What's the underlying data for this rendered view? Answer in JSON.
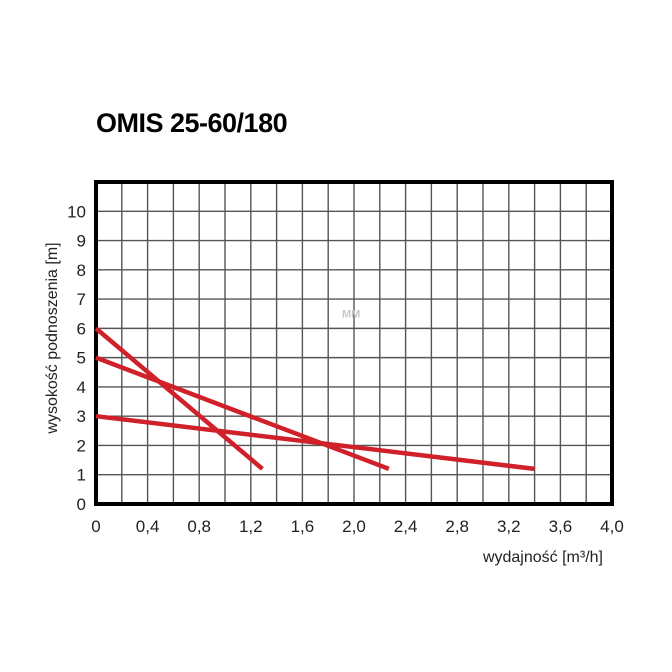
{
  "chart_data": {
    "type": "line",
    "title": "OMIS 25-60/180",
    "xlabel": "wydajność [m³/h]",
    "ylabel": "wysokość podnoszenia [m]",
    "xlim": [
      0,
      4.0
    ],
    "ylim": [
      0,
      11
    ],
    "x_ticks": [
      "0",
      "0,4",
      "0,8",
      "1,2",
      "1,6",
      "2,0",
      "2,4",
      "2,8",
      "3,2",
      "3,6",
      "4,0"
    ],
    "y_ticks": [
      "0",
      "1",
      "2",
      "3",
      "4",
      "5",
      "6",
      "7",
      "8",
      "9",
      "10"
    ],
    "grid": true,
    "watermark": "MM",
    "line_color": "#d0202a",
    "series": [
      {
        "x": [
          0,
          1.29
        ],
        "y": [
          6.0,
          1.2
        ]
      },
      {
        "x": [
          0,
          2.27
        ],
        "y": [
          5.0,
          1.2
        ]
      },
      {
        "x": [
          0,
          3.4
        ],
        "y": [
          3.0,
          1.2
        ]
      }
    ]
  }
}
